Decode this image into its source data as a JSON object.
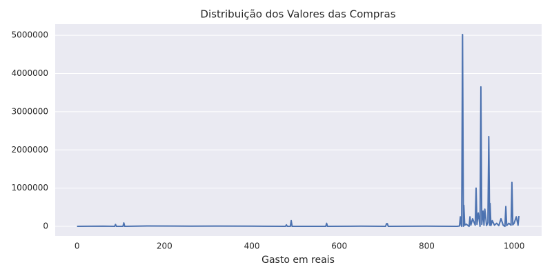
{
  "chart_data": {
    "type": "line",
    "title": "Distribuição dos Valores das Compras",
    "x_label": "Gasto em reais",
    "x": [
      0,
      60,
      86,
      88,
      90,
      105,
      107,
      109,
      160,
      260,
      320,
      400,
      477,
      479,
      481,
      488,
      490,
      492,
      569,
      571,
      573,
      650,
      706,
      708,
      710,
      712,
      800,
      870,
      875,
      877,
      879,
      880,
      882,
      884,
      885,
      887,
      890,
      897,
      899,
      901,
      905,
      911,
      913,
      915,
      918,
      922,
      924,
      926,
      929,
      931,
      933,
      937,
      940,
      942,
      944,
      945,
      947,
      950,
      955,
      960,
      965,
      970,
      975,
      979,
      981,
      983,
      988,
      993,
      995,
      997,
      1000,
      1005,
      1009,
      1011
    ],
    "values": [
      0,
      5000,
      0,
      50000,
      0,
      0,
      90000,
      0,
      10000,
      5000,
      8000,
      5000,
      0,
      40000,
      0,
      0,
      150000,
      0,
      0,
      80000,
      0,
      5000,
      0,
      70000,
      70000,
      0,
      5000,
      0,
      10000,
      250000,
      20000,
      0,
      5020000,
      0,
      550000,
      30000,
      60000,
      0,
      250000,
      30000,
      200000,
      30000,
      1000000,
      50000,
      350000,
      0,
      3650000,
      50000,
      400000,
      30000,
      450000,
      20000,
      100000,
      2350000,
      30000,
      600000,
      20000,
      150000,
      30000,
      80000,
      20000,
      200000,
      30000,
      0,
      520000,
      20000,
      80000,
      30000,
      1150000,
      40000,
      80000,
      250000,
      30000,
      270000
    ],
    "color": "#4c72b0",
    "xlim": [
      -50,
      1063
    ],
    "xticks": [
      0,
      200,
      400,
      600,
      800,
      1000
    ],
    "ylim": [
      -252000,
      5290000
    ],
    "yticks": [
      0,
      1000000,
      2000000,
      3000000,
      4000000,
      5000000
    ],
    "ygrid": true,
    "background": "#eaeaf2"
  }
}
